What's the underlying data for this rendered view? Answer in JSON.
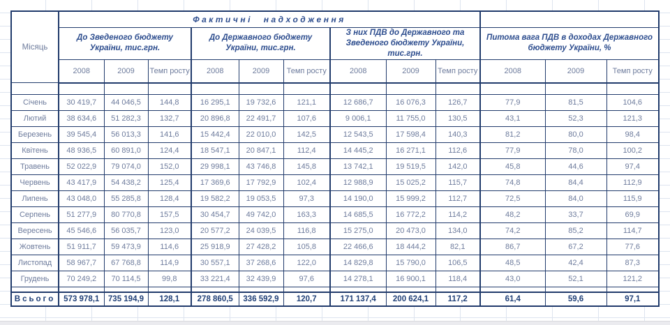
{
  "colors": {
    "table_border": "#203a6b",
    "header_text": "#2d4d8e",
    "data_text": "#6d7b9c",
    "total_text": "#1f3f77",
    "gridline": "#dde4ef"
  },
  "table": {
    "top_header": "Фактичні надходження",
    "month_col_header": "Місяць",
    "groups": [
      {
        "label": "До Зведеного бюджету України, тис.грн."
      },
      {
        "label": "До Державного бюджету України, тис.грн."
      },
      {
        "label": "З них ПДВ до Державного та Зведеного бюджету України, тис.грн."
      },
      {
        "label": "Питома вага ПДВ в доходах Державного бюджету України, %"
      }
    ],
    "year_headers": [
      "2008",
      "2009",
      "Темп росту"
    ],
    "rows": [
      {
        "month": "Січень",
        "values": [
          "30 419,7",
          "44 046,5",
          "144,8",
          "16 295,1",
          "19 732,6",
          "121,1",
          "12 686,7",
          "16 076,3",
          "126,7",
          "77,9",
          "81,5",
          "104,6"
        ]
      },
      {
        "month": "Лютий",
        "values": [
          "38 634,6",
          "51 282,3",
          "132,7",
          "20 896,8",
          "22 491,7",
          "107,6",
          "9 006,1",
          "11 755,0",
          "130,5",
          "43,1",
          "52,3",
          "121,3"
        ]
      },
      {
        "month": "Березень",
        "values": [
          "39 545,4",
          "56 013,3",
          "141,6",
          "15 442,4",
          "22 010,0",
          "142,5",
          "12 543,5",
          "17 598,4",
          "140,3",
          "81,2",
          "80,0",
          "98,4"
        ]
      },
      {
        "month": "Квітень",
        "values": [
          "48 936,5",
          "60 891,0",
          "124,4",
          "18 547,1",
          "20 847,1",
          "112,4",
          "14 445,2",
          "16 271,1",
          "112,6",
          "77,9",
          "78,0",
          "100,2"
        ]
      },
      {
        "month": "Травень",
        "values": [
          "52 022,9",
          "79 074,0",
          "152,0",
          "29 998,1",
          "43 746,8",
          "145,8",
          "13 742,1",
          "19 519,5",
          "142,0",
          "45,8",
          "44,6",
          "97,4"
        ]
      },
      {
        "month": "Червень",
        "values": [
          "43 417,9",
          "54 438,2",
          "125,4",
          "17 369,6",
          "17 792,9",
          "102,4",
          "12 988,9",
          "15 025,2",
          "115,7",
          "74,8",
          "84,4",
          "112,9"
        ]
      },
      {
        "month": "Липень",
        "values": [
          "43 048,0",
          "55 285,8",
          "128,4",
          "19 582,2",
          "19 053,5",
          "97,3",
          "14 190,0",
          "15 999,2",
          "112,7",
          "72,5",
          "84,0",
          "115,9"
        ]
      },
      {
        "month": "Серпень",
        "values": [
          "51 277,9",
          "80 770,8",
          "157,5",
          "30 454,7",
          "49 742,0",
          "163,3",
          "14 685,5",
          "16 772,2",
          "114,2",
          "48,2",
          "33,7",
          "69,9"
        ]
      },
      {
        "month": "Вересень",
        "values": [
          "45 546,6",
          "56 035,7",
          "123,0",
          "20 577,2",
          "24 039,5",
          "116,8",
          "15 275,0",
          "20 473,0",
          "134,0",
          "74,2",
          "85,2",
          "114,7"
        ]
      },
      {
        "month": "Жовтень",
        "values": [
          "51 911,7",
          "59 473,9",
          "114,6",
          "25 918,9",
          "27 428,2",
          "105,8",
          "22 466,6",
          "18 444,2",
          "82,1",
          "86,7",
          "67,2",
          "77,6"
        ]
      },
      {
        "month": "Листопад",
        "values": [
          "58 967,7",
          "67 768,8",
          "114,9",
          "30 557,1",
          "37 268,6",
          "122,0",
          "14 829,8",
          "15 790,0",
          "106,5",
          "48,5",
          "42,4",
          "87,3"
        ]
      },
      {
        "month": "Грудень",
        "values": [
          "70 249,2",
          "70 114,5",
          "99,8",
          "33 221,4",
          "32 439,9",
          "97,6",
          "14 278,1",
          "16 900,1",
          "118,4",
          "43,0",
          "52,1",
          "121,2"
        ]
      }
    ],
    "total": {
      "label": "Всього",
      "values": [
        "573 978,1",
        "735 194,9",
        "128,1",
        "278 860,5",
        "336 592,9",
        "120,7",
        "171 137,4",
        "200 624,1",
        "117,2",
        "61,4",
        "59,6",
        "97,1"
      ]
    }
  }
}
